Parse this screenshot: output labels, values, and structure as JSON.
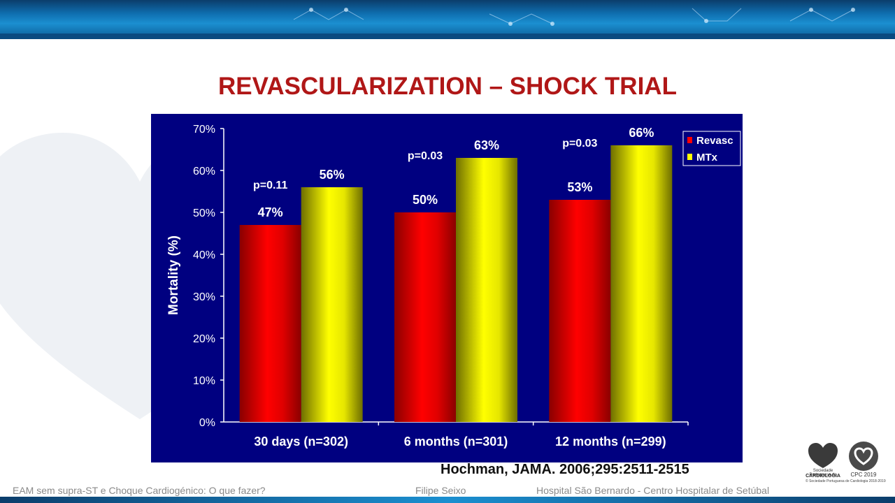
{
  "slide": {
    "title": "REVASCULARIZATION – SHOCK TRIAL",
    "citation": "Hochman, JAMA. 2006;295:2511-2515",
    "footer_left": "EAM sem supra-ST e Choque Cardiogénico: O que fazer?",
    "footer_mid": "Filipe Seixo",
    "footer_right": "Hospital São Bernardo  - Centro Hospitalar de Setúbal",
    "logo_spc_line1": "Sociedade Portuguesa de",
    "logo_spc_line2": "CARDIOLOGIA",
    "logo_spc_line3": "© Sociedade Portuguesa de Cardiologia 2018-2019",
    "logo_cpc": "CPC 2019"
  },
  "colors": {
    "title": "#b01717",
    "plot_background": "#000080",
    "revasc": "#ff0000",
    "mtx": "#ffff00"
  },
  "chart_data": {
    "type": "bar",
    "ylabel": "Mortality (%)",
    "xlabel": "",
    "ylim": [
      0,
      70
    ],
    "yticks": [
      "0%",
      "10%",
      "20%",
      "30%",
      "40%",
      "50%",
      "60%",
      "70%"
    ],
    "categories": [
      "30 days (n=302)",
      "6 months (n=301)",
      "12 months (n=299)"
    ],
    "series": [
      {
        "name": "Revasc",
        "values": [
          47,
          50,
          53
        ],
        "labels": [
          "47%",
          "50%",
          "53%"
        ]
      },
      {
        "name": "MTx",
        "values": [
          56,
          63,
          66
        ],
        "labels": [
          "56%",
          "63%",
          "66%"
        ]
      }
    ],
    "annotations": [
      "p=0.11",
      "p=0.03",
      "p=0.03"
    ],
    "legend_position": "top-right",
    "grid": false
  }
}
